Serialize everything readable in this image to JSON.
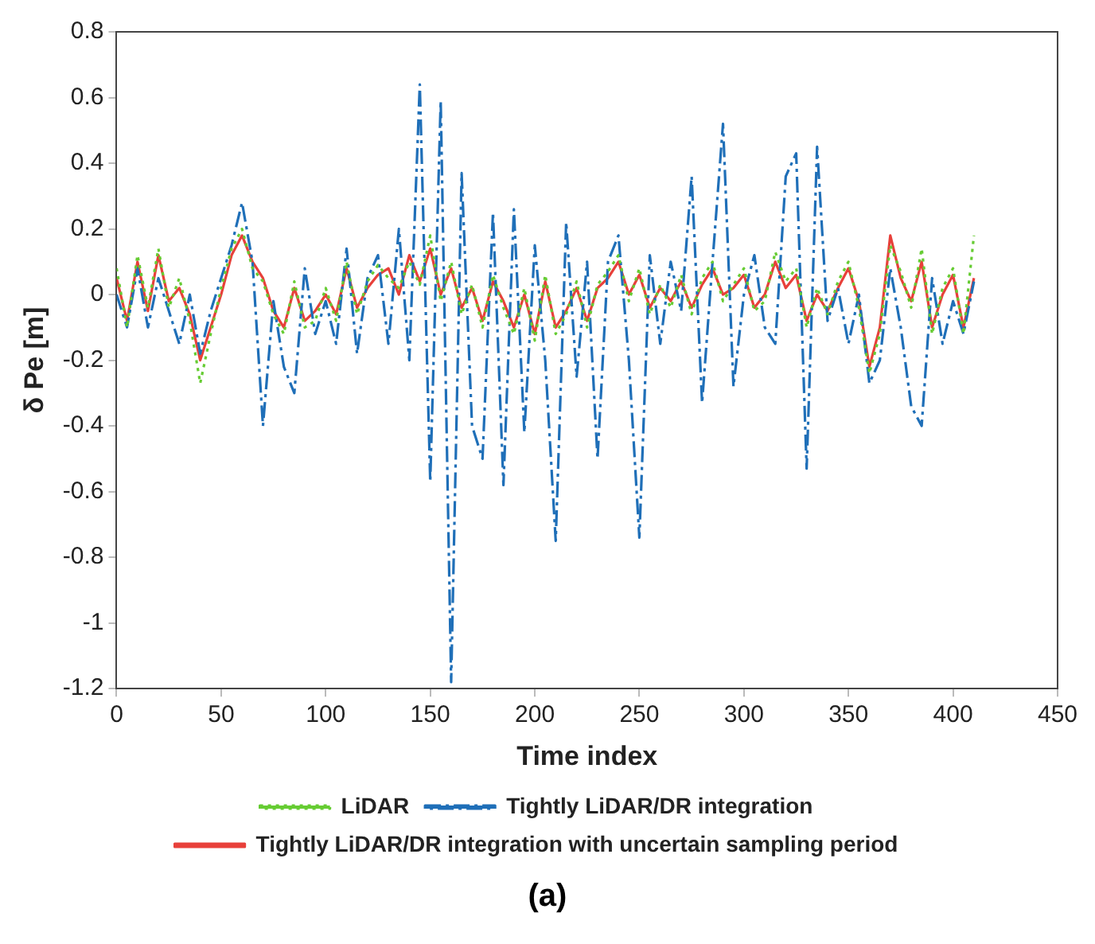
{
  "chart_data": {
    "type": "line",
    "xlabel": "Time index",
    "ylabel": "δ Pe [m]",
    "annotations": [
      "(a)"
    ],
    "x": [
      0,
      5,
      10,
      15,
      20,
      25,
      30,
      35,
      40,
      45,
      50,
      55,
      60,
      65,
      70,
      75,
      80,
      85,
      90,
      95,
      100,
      105,
      110,
      115,
      120,
      125,
      130,
      135,
      140,
      145,
      150,
      155,
      160,
      165,
      170,
      175,
      180,
      185,
      190,
      195,
      200,
      205,
      210,
      215,
      220,
      225,
      230,
      235,
      240,
      245,
      250,
      255,
      260,
      265,
      270,
      275,
      280,
      285,
      290,
      295,
      300,
      305,
      310,
      315,
      320,
      325,
      330,
      335,
      340,
      345,
      350,
      355,
      360,
      365,
      370,
      375,
      380,
      385,
      390,
      395,
      400,
      405,
      410
    ],
    "xlim": [
      0,
      450
    ],
    "xticks": [
      0,
      50,
      100,
      150,
      200,
      250,
      300,
      350,
      400,
      450
    ],
    "ylim": [
      -1.2,
      0.8
    ],
    "yticks": [
      -1.2,
      -1,
      -0.8,
      -0.6,
      -0.4,
      -0.2,
      0,
      0.2,
      0.4,
      0.6,
      0.8
    ],
    "grid": false,
    "legend": "bottom",
    "marker": "none",
    "series": [
      {
        "name": "LiDAR",
        "color": "#66cc33",
        "line_style": "dotted",
        "values": [
          0.08,
          -0.1,
          0.12,
          -0.04,
          0.14,
          -0.04,
          0.05,
          -0.08,
          -0.27,
          -0.12,
          0.02,
          0.14,
          0.2,
          0.08,
          0.04,
          -0.06,
          -0.12,
          0.04,
          -0.1,
          -0.08,
          0.02,
          -0.08,
          0.1,
          -0.06,
          0.04,
          0.09,
          0.05,
          0.02,
          0.1,
          0.03,
          0.18,
          -0.02,
          0.1,
          -0.06,
          0.03,
          -0.1,
          0.06,
          -0.04,
          -0.12,
          0.02,
          -0.14,
          0.06,
          -0.12,
          -0.06,
          0.04,
          -0.1,
          0.03,
          0.07,
          0.12,
          -0.02,
          0.08,
          -0.06,
          0.03,
          -0.04,
          0.06,
          -0.06,
          0.05,
          0.1,
          -0.02,
          0.03,
          0.08,
          -0.05,
          -0.02,
          0.13,
          0.04,
          0.08,
          -0.1,
          0.02,
          -0.06,
          0.04,
          0.1,
          -0.04,
          -0.24,
          -0.12,
          0.15,
          0.07,
          -0.04,
          0.14,
          -0.12,
          0.02,
          0.08,
          -0.12,
          0.18
        ]
      },
      {
        "name": "Tightly LiDAR/DR integration",
        "color": "#1f6fb8",
        "line_style": "dashed",
        "values": [
          0.0,
          -0.1,
          0.08,
          -0.1,
          0.05,
          -0.05,
          -0.15,
          0.0,
          -0.18,
          -0.05,
          0.05,
          0.15,
          0.28,
          0.1,
          -0.4,
          -0.02,
          -0.22,
          -0.3,
          0.08,
          -0.12,
          -0.02,
          -0.15,
          0.14,
          -0.18,
          0.05,
          0.12,
          -0.15,
          0.2,
          -0.2,
          0.64,
          -0.57,
          0.59,
          -1.18,
          0.37,
          -0.4,
          -0.5,
          0.25,
          -0.58,
          0.26,
          -0.42,
          0.15,
          -0.2,
          -0.75,
          0.22,
          -0.25,
          0.1,
          -0.5,
          0.1,
          0.18,
          -0.2,
          -0.74,
          0.12,
          -0.15,
          0.1,
          -0.05,
          0.36,
          -0.33,
          0.1,
          0.52,
          -0.28,
          0.0,
          0.12,
          -0.1,
          -0.15,
          0.36,
          0.43,
          -0.53,
          0.45,
          -0.08,
          0.02,
          -0.15,
          0.0,
          -0.27,
          -0.2,
          0.08,
          -0.1,
          -0.34,
          -0.4,
          0.05,
          -0.15,
          -0.02,
          -0.12,
          0.04
        ]
      },
      {
        "name": "Tightly LiDAR/DR integration with uncertain sampling period",
        "color": "#e8403a",
        "line_style": "solid",
        "values": [
          0.05,
          -0.08,
          0.1,
          -0.05,
          0.12,
          -0.02,
          0.02,
          -0.06,
          -0.2,
          -0.1,
          0.0,
          0.12,
          0.18,
          0.1,
          0.05,
          -0.05,
          -0.1,
          0.02,
          -0.08,
          -0.05,
          0.0,
          -0.06,
          0.08,
          -0.04,
          0.02,
          0.06,
          0.08,
          0.0,
          0.12,
          0.04,
          0.14,
          0.0,
          0.08,
          -0.04,
          0.02,
          -0.08,
          0.04,
          -0.02,
          -0.1,
          0.0,
          -0.12,
          0.04,
          -0.1,
          -0.05,
          0.02,
          -0.08,
          0.02,
          0.05,
          0.1,
          0.0,
          0.06,
          -0.04,
          0.02,
          -0.02,
          0.04,
          -0.04,
          0.03,
          0.08,
          0.0,
          0.02,
          0.06,
          -0.04,
          0.0,
          0.1,
          0.02,
          0.06,
          -0.08,
          0.0,
          -0.05,
          0.02,
          0.08,
          -0.02,
          -0.22,
          -0.1,
          0.18,
          0.05,
          -0.02,
          0.1,
          -0.1,
          0.0,
          0.06,
          -0.1,
          0.05
        ]
      }
    ]
  }
}
